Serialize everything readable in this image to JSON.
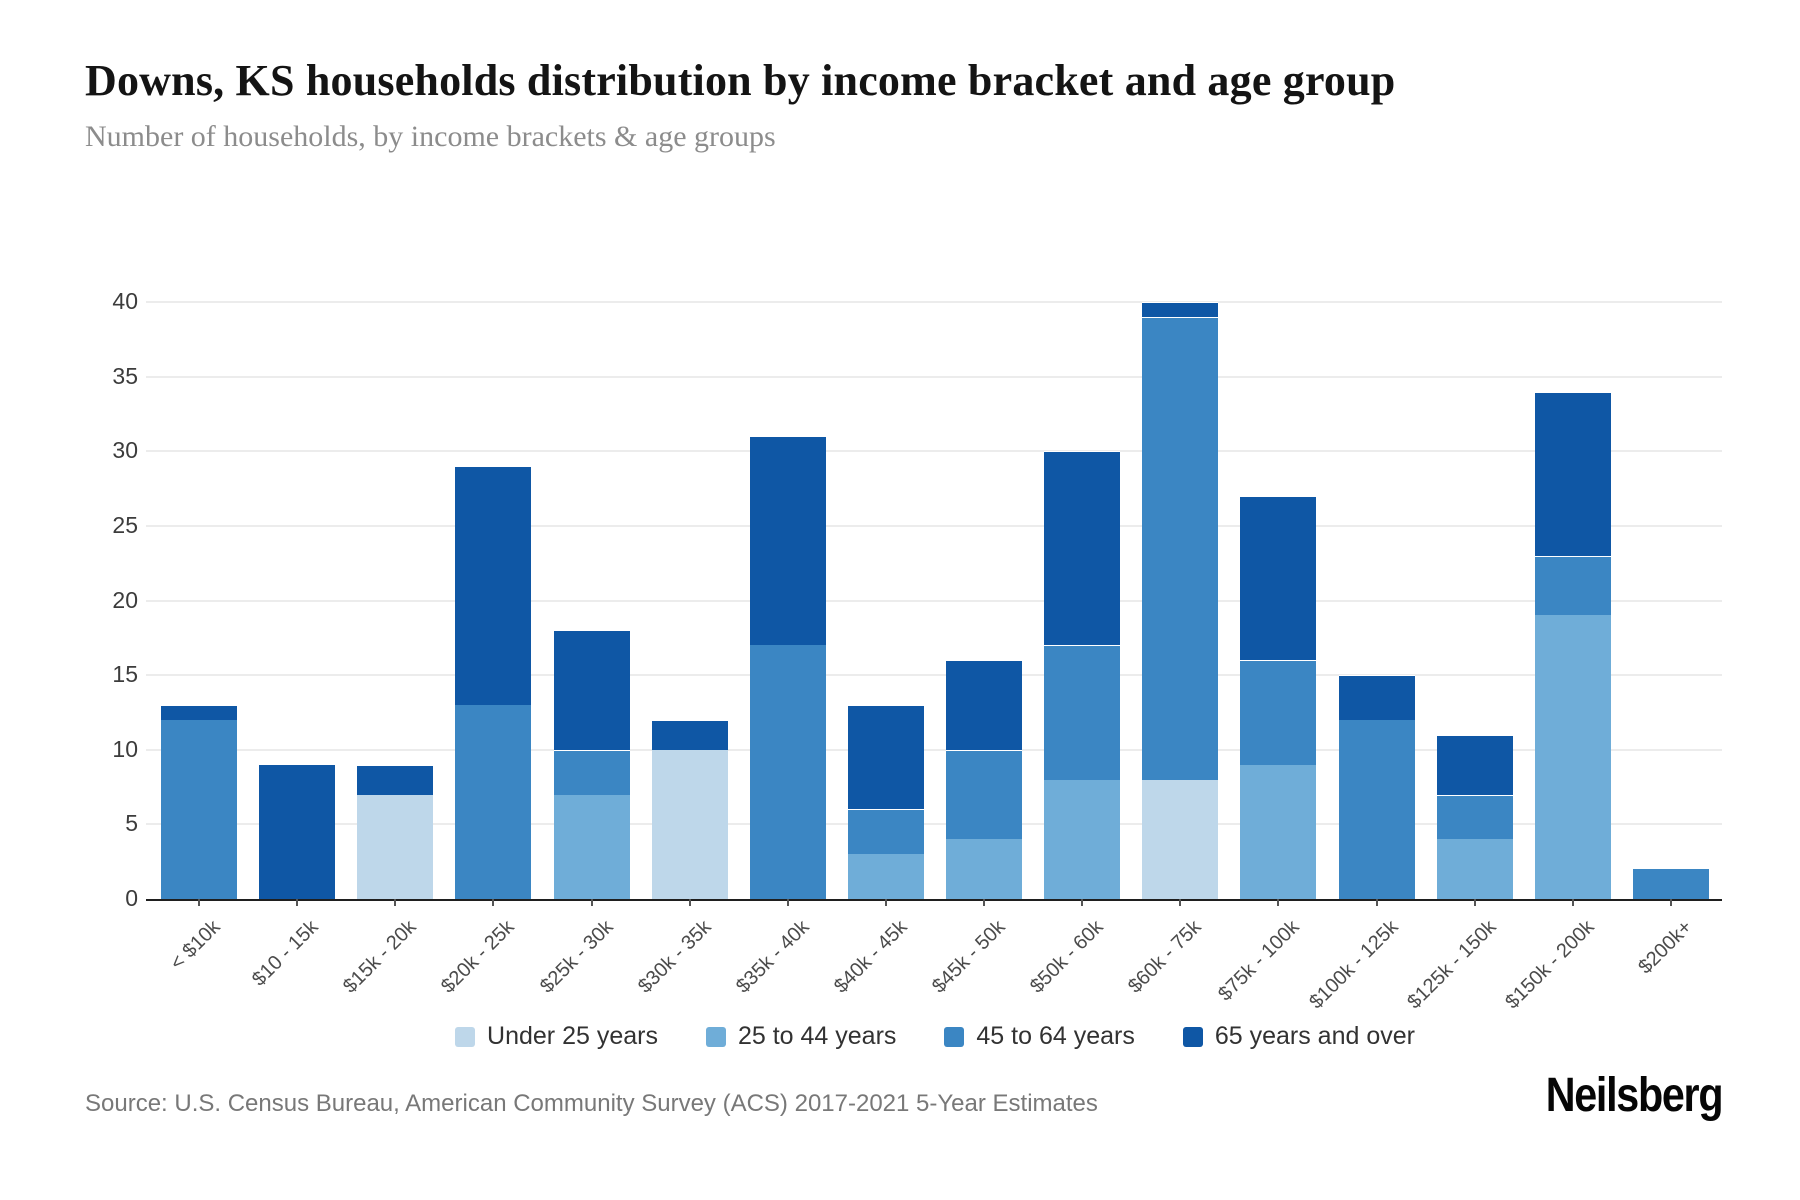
{
  "header": {
    "title": "Downs, KS households distribution by income bracket and age group",
    "subtitle": "Number of households, by income brackets & age groups"
  },
  "footer": {
    "source": "Source: U.S. Census Bureau, American Community Survey (ACS) 2017-2021 5-Year Estimates",
    "brand": "Neilsberg"
  },
  "chart_data": {
    "type": "bar",
    "stacked": true,
    "title": "Downs, KS households distribution by income bracket and age group",
    "xlabel": "",
    "ylabel": "",
    "ylim": [
      0,
      40
    ],
    "yticks": [
      0,
      5,
      10,
      15,
      20,
      25,
      30,
      35,
      40
    ],
    "grid": "horizontal",
    "legend_position": "bottom-center",
    "categories": [
      "< $10k",
      "$10 - 15k",
      "$15k - 20k",
      "$20k - 25k",
      "$25k - 30k",
      "$30k - 35k",
      "$35k - 40k",
      "$40k - 45k",
      "$45k - 50k",
      "$50k - 60k",
      "$60k - 75k",
      "$75k - 100k",
      "$100k - 125k",
      "$125k - 150k",
      "$150k - 200k",
      "$200k+"
    ],
    "series": [
      {
        "name": "Under 25 years",
        "color": "#bed7ea",
        "values": [
          0,
          0,
          7,
          0,
          0,
          10,
          0,
          0,
          0,
          0,
          8,
          0,
          0,
          0,
          0,
          0
        ]
      },
      {
        "name": "25 to 44 years",
        "color": "#6fadd8",
        "values": [
          0,
          0,
          0,
          0,
          7,
          0,
          0,
          3,
          4,
          8,
          0,
          9,
          0,
          4,
          19,
          0
        ]
      },
      {
        "name": "45 to 64 years",
        "color": "#3b86c3",
        "values": [
          12,
          0,
          0,
          13,
          3,
          0,
          17,
          3,
          6,
          9,
          31,
          7,
          12,
          3,
          4,
          2
        ]
      },
      {
        "name": "65 years and over",
        "color": "#0f57a5",
        "values": [
          1,
          9,
          2,
          16,
          8,
          2,
          14,
          7,
          6,
          13,
          1,
          11,
          3,
          4,
          11,
          0
        ]
      }
    ],
    "totals": [
      13,
      9,
      9,
      29,
      18,
      12,
      31,
      13,
      16,
      30,
      40,
      27,
      15,
      11,
      34,
      2
    ]
  }
}
